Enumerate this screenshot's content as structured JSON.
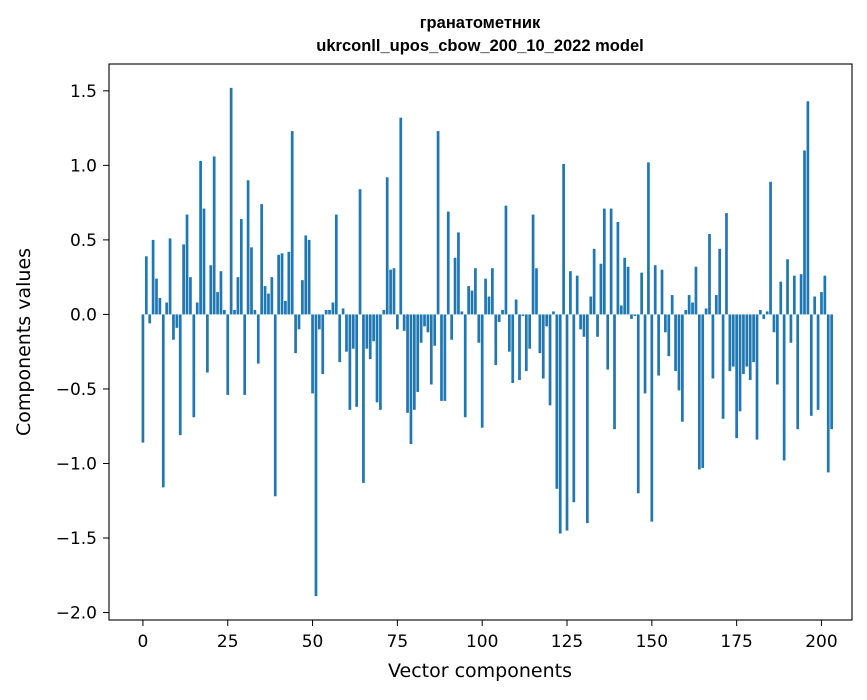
{
  "chart_data": {
    "type": "bar",
    "title": "гранатометник",
    "subtitle": "ukrconll_upos_cbow_200_10_2022 model",
    "xlabel": "Vector components",
    "ylabel": "Components values",
    "xlim": [
      -10,
      209
    ],
    "ylim": [
      -2.05,
      1.68
    ],
    "xticks": [
      0,
      25,
      50,
      75,
      100,
      125,
      150,
      175,
      200
    ],
    "yticks": [
      -2.0,
      -1.5,
      -1.0,
      -0.5,
      0.0,
      0.5,
      1.0,
      1.5
    ],
    "xtick_labels": [
      "0",
      "25",
      "50",
      "75",
      "100",
      "125",
      "150",
      "175",
      "200"
    ],
    "ytick_labels": [
      "−2.0",
      "−1.5",
      "−1.0",
      "−0.5",
      "0.0",
      "0.5",
      "1.0",
      "1.5"
    ],
    "bar_color": "#1f77b4",
    "grid": false,
    "legend": "none",
    "values": [
      -0.86,
      0.39,
      -0.06,
      0.5,
      0.24,
      0.11,
      -1.16,
      0.08,
      0.51,
      -0.17,
      -0.09,
      -0.81,
      0.47,
      0.67,
      0.25,
      -0.69,
      0.08,
      1.03,
      0.71,
      -0.39,
      0.33,
      1.06,
      0.15,
      0.29,
      0.03,
      -0.54,
      1.52,
      0.03,
      0.25,
      0.64,
      -0.54,
      0.9,
      0.45,
      0.03,
      -0.33,
      0.74,
      0.19,
      0.14,
      0.25,
      -1.22,
      0.4,
      0.41,
      0.09,
      0.42,
      1.23,
      -0.26,
      -0.1,
      0.23,
      0.53,
      0.5,
      -0.53,
      -1.89,
      -0.1,
      -0.4,
      0.03,
      0.03,
      0.08,
      0.67,
      -0.32,
      0.04,
      -0.25,
      -0.64,
      -0.23,
      -0.62,
      0.84,
      -1.13,
      -0.23,
      -0.3,
      -0.18,
      -0.59,
      -0.64,
      0.03,
      0.92,
      0.3,
      0.31,
      -0.1,
      1.32,
      -0.11,
      -0.66,
      -0.87,
      -0.64,
      -0.52,
      -0.19,
      -0.08,
      -0.12,
      -0.47,
      -0.21,
      1.23,
      -0.58,
      -0.58,
      0.69,
      -0.17,
      0.38,
      0.55,
      0.02,
      -0.69,
      0.19,
      0.16,
      0.31,
      -0.19,
      -0.76,
      0.24,
      0.12,
      0.31,
      -0.34,
      -0.05,
      0.03,
      0.73,
      -0.25,
      -0.46,
      0.1,
      -0.44,
      -0.01,
      -0.38,
      -0.23,
      0.67,
      0.31,
      -0.26,
      -0.43,
      -0.08,
      -0.61,
      0.02,
      -1.17,
      -1.47,
      1.01,
      -1.45,
      0.29,
      -1.26,
      0.26,
      -0.1,
      -0.15,
      -1.4,
      0.12,
      0.44,
      -0.15,
      0.34,
      0.71,
      -0.37,
      0.71,
      -0.77,
      0.62,
      0.06,
      0.38,
      0.32,
      -0.03,
      -0.01,
      -1.2,
      0.28,
      -0.53,
      1.02,
      -1.39,
      0.33,
      -0.41,
      0.3,
      -0.12,
      -0.28,
      0.13,
      -0.38,
      -0.51,
      -0.72,
      0.03,
      0.13,
      0.08,
      0.32,
      -1.04,
      -1.03,
      0.04,
      0.54,
      -0.43,
      0.13,
      0.44,
      -0.7,
      0.68,
      -0.38,
      -0.35,
      -0.83,
      -0.65,
      -0.4,
      -0.35,
      -0.44,
      -0.32,
      -0.84,
      0.03,
      -0.03,
      0.02,
      0.89,
      -0.12,
      -0.47,
      0.22,
      -0.98,
      0.37,
      -0.19,
      0.26,
      -0.77,
      0.27,
      1.1,
      1.43,
      -0.68,
      0.12,
      -0.64,
      0.15,
      0.26,
      -1.06,
      -0.77
    ]
  }
}
